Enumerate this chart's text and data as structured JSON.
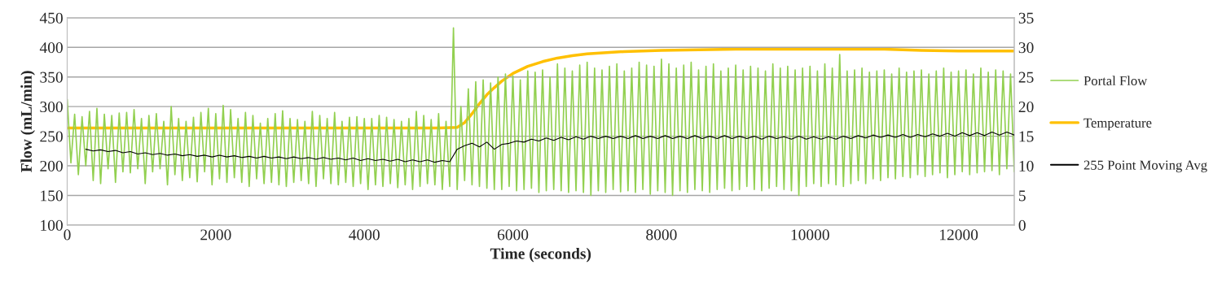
{
  "chart_data": {
    "type": "line",
    "xlabel": "Time (seconds)",
    "ylabel": "Flow (mL/min)",
    "xlim": [
      0,
      12750
    ],
    "xticks": [
      0,
      2000,
      4000,
      6000,
      8000,
      10000,
      12000
    ],
    "ylim": [
      100,
      450
    ],
    "yticks": [
      100,
      150,
      200,
      250,
      300,
      350,
      400,
      450
    ],
    "y2lim": [
      0,
      35
    ],
    "y2ticks": [
      0,
      5,
      10,
      15,
      20,
      25,
      30,
      35
    ],
    "grid": "y",
    "legend": "right",
    "marker": "none",
    "line_style": "solid",
    "series": [
      {
        "name": "Portal Flow",
        "color": "#92d050",
        "x": [
          0,
          50,
          100,
          150,
          200,
          250,
          300,
          350,
          400,
          450,
          500,
          550,
          600,
          650,
          700,
          750,
          800,
          850,
          900,
          950,
          1000,
          1050,
          1100,
          1150,
          1200,
          1250,
          1300,
          1350,
          1400,
          1450,
          1500,
          1550,
          1600,
          1650,
          1700,
          1750,
          1800,
          1850,
          1900,
          1950,
          2000,
          2050,
          2100,
          2150,
          2200,
          2250,
          2300,
          2350,
          2400,
          2450,
          2500,
          2550,
          2600,
          2650,
          2700,
          2750,
          2800,
          2850,
          2900,
          2950,
          3000,
          3050,
          3100,
          3150,
          3200,
          3250,
          3300,
          3350,
          3400,
          3450,
          3500,
          3550,
          3600,
          3650,
          3700,
          3750,
          3800,
          3850,
          3900,
          3950,
          4000,
          4050,
          4100,
          4150,
          4200,
          4250,
          4300,
          4350,
          4400,
          4450,
          4500,
          4550,
          4600,
          4650,
          4700,
          4750,
          4800,
          4850,
          4900,
          4950,
          5000,
          5050,
          5100,
          5150,
          5200,
          5250,
          5300,
          5350,
          5400,
          5450,
          5500,
          5550,
          5600,
          5650,
          5700,
          5750,
          5800,
          5850,
          5900,
          5950,
          6000,
          6050,
          6100,
          6150,
          6200,
          6250,
          6300,
          6350,
          6400,
          6450,
          6500,
          6550,
          6600,
          6650,
          6700,
          6750,
          6800,
          6850,
          6900,
          6950,
          7000,
          7050,
          7100,
          7150,
          7200,
          7250,
          7300,
          7350,
          7400,
          7450,
          7500,
          7550,
          7600,
          7650,
          7700,
          7750,
          7800,
          7850,
          7900,
          7950,
          8000,
          8050,
          8100,
          8150,
          8200,
          8250,
          8300,
          8350,
          8400,
          8450,
          8500,
          8550,
          8600,
          8650,
          8700,
          8750,
          8800,
          8850,
          8900,
          8950,
          9000,
          9050,
          9100,
          9150,
          9200,
          9250,
          9300,
          9350,
          9400,
          9450,
          9500,
          9550,
          9600,
          9650,
          9700,
          9750,
          9800,
          9850,
          9900,
          9950,
          10000,
          10050,
          10100,
          10150,
          10200,
          10250,
          10300,
          10350,
          10400,
          10450,
          10500,
          10550,
          10600,
          10650,
          10700,
          10750,
          10800,
          10850,
          10900,
          10950,
          11000,
          11050,
          11100,
          11150,
          11200,
          11250,
          11300,
          11350,
          11400,
          11450,
          11500,
          11550,
          11600,
          11650,
          11700,
          11750,
          11800,
          11850,
          11900,
          11950,
          12000,
          12050,
          12100,
          12150,
          12200,
          12250,
          12300,
          12350,
          12400,
          12450,
          12500,
          12550,
          12600,
          12650,
          12700,
          12750
        ],
        "values": [
          312,
          205,
          287,
          185,
          283,
          200,
          292,
          175,
          297,
          170,
          287,
          195,
          285,
          172,
          289,
          190,
          290,
          188,
          295,
          195,
          280,
          170,
          285,
          190,
          288,
          195,
          275,
          168,
          300,
          185,
          280,
          175,
          275,
          180,
          282,
          173,
          290,
          190,
          297,
          168,
          288,
          178,
          302,
          172,
          295,
          180,
          280,
          172,
          290,
          165,
          285,
          178,
          272,
          170,
          280,
          172,
          288,
          168,
          293,
          165,
          280,
          172,
          278,
          175,
          275,
          170,
          292,
          165,
          285,
          178,
          280,
          170,
          290,
          168,
          275,
          172,
          282,
          165,
          283,
          170,
          280,
          160,
          280,
          168,
          285,
          165,
          282,
          170,
          278,
          163,
          275,
          168,
          280,
          160,
          292,
          165,
          285,
          170,
          278,
          168,
          288,
          160,
          275,
          165,
          433,
          160,
          300,
          175,
          330,
          168,
          342,
          165,
          345,
          162,
          340,
          160,
          350,
          160,
          355,
          165,
          352,
          158,
          345,
          160,
          360,
          162,
          358,
          155,
          362,
          158,
          350,
          160,
          372,
          158,
          365,
          155,
          360,
          158,
          370,
          155,
          375,
          150,
          365,
          158,
          362,
          155,
          368,
          160,
          372,
          156,
          360,
          158,
          365,
          155,
          375,
          160,
          370,
          152,
          368,
          158,
          380,
          155,
          372,
          150,
          365,
          158,
          370,
          155,
          375,
          160,
          362,
          158,
          368,
          155,
          372,
          160,
          360,
          162,
          365,
          158,
          370,
          160,
          362,
          165,
          368,
          160,
          365,
          158,
          360,
          162,
          372,
          165,
          365,
          160,
          368,
          158,
          362,
          150,
          365,
          165,
          368,
          170,
          360,
          165,
          372,
          170,
          365,
          168,
          388,
          165,
          360,
          170,
          362,
          175,
          365,
          170,
          358,
          178,
          360,
          175,
          362,
          180,
          355,
          178,
          365,
          182,
          358,
          180,
          360,
          185,
          362,
          182,
          355,
          185,
          360,
          188,
          365,
          180,
          358,
          185,
          360,
          190,
          362,
          185,
          355,
          188,
          365,
          190,
          358,
          192,
          362,
          185,
          360,
          195,
          355,
          190
        ]
      },
      {
        "name": "Temperature",
        "color": "#ffc000",
        "axis": "y2",
        "x": [
          0,
          1000,
          2000,
          3000,
          4000,
          5000,
          5250,
          5350,
          5450,
          5550,
          5650,
          5750,
          5850,
          6000,
          6200,
          6400,
          6600,
          6800,
          7000,
          7500,
          8000,
          8500,
          9000,
          10000,
          11000,
          11500,
          12000,
          12750
        ],
        "values": [
          16.4,
          16.4,
          16.4,
          16.4,
          16.4,
          16.4,
          16.5,
          17.3,
          18.8,
          20.5,
          22.0,
          23.2,
          24.3,
          25.6,
          26.8,
          27.6,
          28.2,
          28.6,
          28.9,
          29.3,
          29.5,
          29.6,
          29.7,
          29.7,
          29.7,
          29.5,
          29.4,
          29.4
        ]
      },
      {
        "name": "255 Point Moving Avg",
        "color": "#000000",
        "x": [
          250,
          350,
          450,
          550,
          650,
          750,
          850,
          950,
          1050,
          1150,
          1250,
          1350,
          1450,
          1550,
          1650,
          1750,
          1850,
          1950,
          2050,
          2150,
          2250,
          2350,
          2450,
          2550,
          2650,
          2750,
          2850,
          2950,
          3050,
          3150,
          3250,
          3350,
          3450,
          3550,
          3650,
          3750,
          3850,
          3950,
          4050,
          4150,
          4250,
          4350,
          4450,
          4550,
          4650,
          4750,
          4850,
          4950,
          5050,
          5150,
          5250,
          5350,
          5450,
          5550,
          5650,
          5750,
          5850,
          5950,
          6050,
          6150,
          6250,
          6350,
          6450,
          6550,
          6650,
          6750,
          6850,
          6950,
          7050,
          7150,
          7250,
          7350,
          7450,
          7550,
          7650,
          7750,
          7850,
          7950,
          8050,
          8150,
          8250,
          8350,
          8450,
          8550,
          8650,
          8750,
          8850,
          8950,
          9050,
          9150,
          9250,
          9350,
          9450,
          9550,
          9650,
          9750,
          9850,
          9950,
          10050,
          10150,
          10250,
          10350,
          10450,
          10550,
          10650,
          10750,
          10850,
          10950,
          11050,
          11150,
          11250,
          11350,
          11450,
          11550,
          11650,
          11750,
          11850,
          11950,
          12050,
          12150,
          12250,
          12350,
          12450,
          12550,
          12650,
          12750
        ],
        "values": [
          228,
          225,
          227,
          224,
          226,
          222,
          224,
          220,
          222,
          219,
          221,
          218,
          220,
          217,
          219,
          216,
          218,
          215,
          218,
          215,
          217,
          214,
          216,
          213,
          216,
          213,
          215,
          212,
          215,
          212,
          214,
          211,
          214,
          211,
          213,
          210,
          213,
          209,
          212,
          209,
          211,
          208,
          211,
          207,
          210,
          207,
          210,
          206,
          209,
          207,
          228,
          234,
          238,
          232,
          240,
          228,
          236,
          238,
          242,
          240,
          245,
          242,
          247,
          243,
          248,
          244,
          249,
          245,
          250,
          246,
          250,
          246,
          250,
          246,
          251,
          246,
          250,
          246,
          251,
          246,
          250,
          246,
          251,
          246,
          250,
          246,
          251,
          246,
          250,
          246,
          250,
          245,
          250,
          246,
          249,
          245,
          250,
          245,
          249,
          245,
          249,
          245,
          250,
          246,
          251,
          247,
          252,
          248,
          252,
          248,
          253,
          248,
          253,
          249,
          254,
          250,
          255,
          250,
          256,
          251,
          256,
          251,
          257,
          252,
          257,
          252
        ]
      }
    ]
  }
}
